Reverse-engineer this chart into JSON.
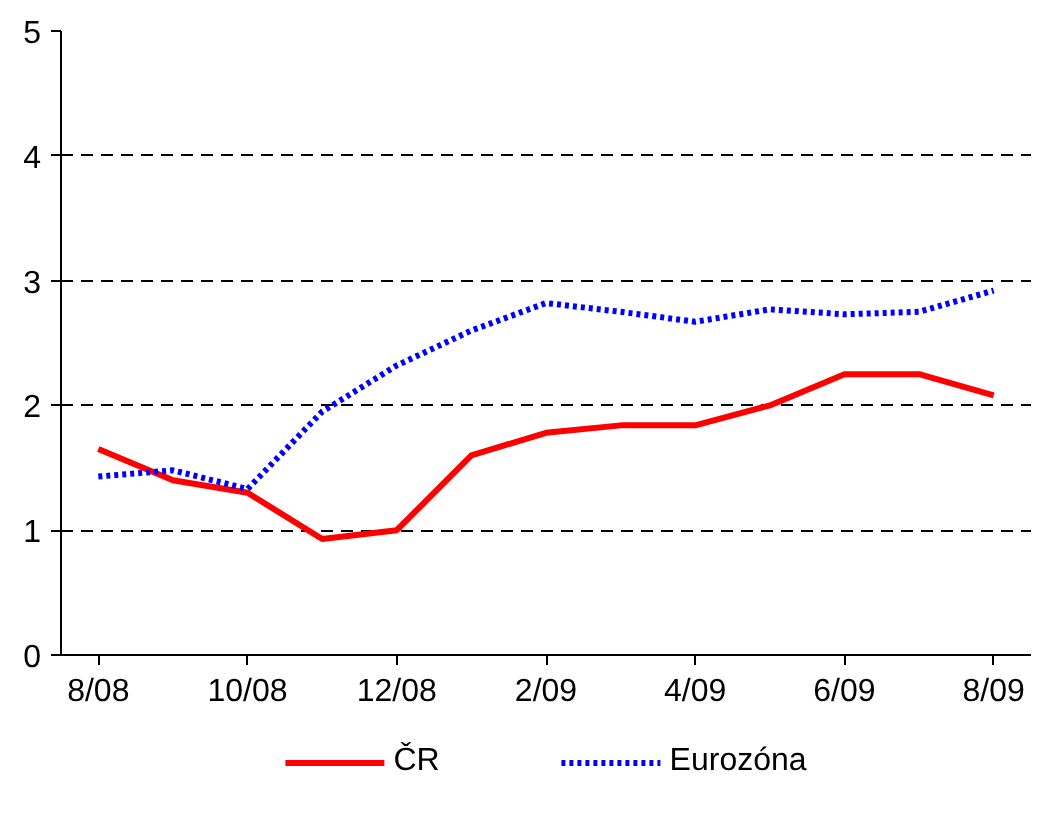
{
  "chart_data": {
    "type": "line",
    "categories": [
      "8/08",
      null,
      "10/08",
      null,
      "12/08",
      null,
      "2/09",
      null,
      "4/09",
      null,
      "6/09",
      null,
      "8/09"
    ],
    "series": [
      {
        "name": "ČR",
        "color": "#ff0000",
        "line_style": "solid",
        "values": [
          1.65,
          1.4,
          1.3,
          0.93,
          1.0,
          1.6,
          1.78,
          1.84,
          1.84,
          2.0,
          2.25,
          2.25,
          2.08
        ]
      },
      {
        "name": "Eurozóna",
        "color": "#0000ff",
        "line_style": "dotted",
        "values": [
          1.43,
          1.48,
          1.33,
          1.95,
          2.32,
          2.6,
          2.82,
          2.75,
          2.67,
          2.77,
          2.73,
          2.75,
          2.92
        ]
      }
    ],
    "ylim": [
      0,
      5
    ],
    "yticks": [
      0,
      1,
      2,
      3,
      4,
      5
    ],
    "grid": "y",
    "legend": "bottom",
    "marker": "none"
  }
}
